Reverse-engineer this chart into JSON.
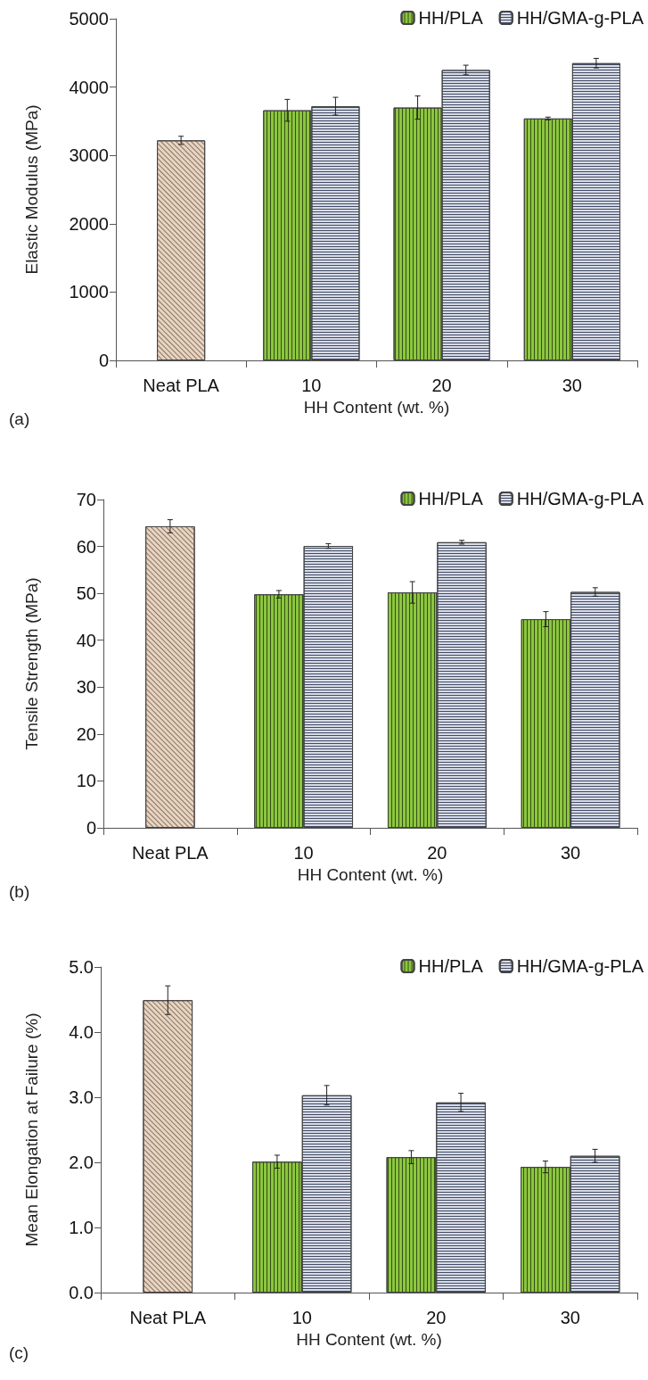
{
  "chart_data": [
    {
      "type": "bar",
      "xlabel": "HH Content (wt. %)",
      "ylabel": "Elastic Modulus (MPa)",
      "annotations": [
        "(a)"
      ],
      "categories": [
        "Neat PLA",
        "10",
        "20",
        "30"
      ],
      "ylim": [
        0,
        5000
      ],
      "yticks": [
        0,
        1000,
        2000,
        3000,
        4000,
        5000
      ],
      "grid": false,
      "legend": "top right",
      "series": [
        {
          "color": "#e6d5c3",
          "values": [
            3220,
            null,
            null,
            null
          ],
          "errors": [
            60,
            null,
            null,
            null
          ]
        },
        {
          "name": "HH/PLA",
          "color": "#8cc63f",
          "values": [
            null,
            3660,
            3700,
            3540
          ],
          "errors": [
            null,
            160,
            170,
            20
          ]
        },
        {
          "name": "HH/GMA-g-PLA",
          "color": "#d8dce6",
          "values": [
            null,
            3720,
            4250,
            4350
          ],
          "errors": [
            null,
            130,
            70,
            70
          ]
        }
      ]
    },
    {
      "type": "bar",
      "xlabel": "HH Content (wt. %)",
      "ylabel": "Tensile Strength (MPa)",
      "annotations": [
        "(b)"
      ],
      "categories": [
        "Neat PLA",
        "10",
        "20",
        "30"
      ],
      "ylim": [
        0,
        70
      ],
      "yticks": [
        0,
        10,
        20,
        30,
        40,
        50,
        60,
        70
      ],
      "grid": false,
      "legend": "top right",
      "series": [
        {
          "color": "#e6d5c3",
          "values": [
            64.3,
            null,
            null,
            null
          ],
          "errors": [
            1.4,
            null,
            null,
            null
          ]
        },
        {
          "name": "HH/PLA",
          "color": "#8cc63f",
          "values": [
            null,
            49.8,
            50.2,
            44.5
          ],
          "errors": [
            null,
            0.8,
            2.3,
            1.6
          ]
        },
        {
          "name": "HH/GMA-g-PLA",
          "color": "#d8dce6",
          "values": [
            null,
            60.1,
            60.9,
            50.3
          ],
          "errors": [
            null,
            0.5,
            0.4,
            0.9
          ]
        }
      ]
    },
    {
      "type": "bar",
      "xlabel": "HH Content (wt. %)",
      "ylabel": "Mean Elongation at Failure (%)",
      "annotations": [
        "(c)"
      ],
      "categories": [
        "Neat PLA",
        "10",
        "20",
        "30"
      ],
      "ylim": [
        0,
        5
      ],
      "yticks": [
        {
          "value": 0,
          "label": "0.0"
        },
        {
          "value": 1,
          "label": "1.0"
        },
        {
          "value": 2,
          "label": "2.0"
        },
        {
          "value": 3,
          "label": "3.0"
        },
        {
          "value": 4,
          "label": "4.0"
        },
        {
          "value": 5,
          "label": "5.0"
        }
      ],
      "grid": false,
      "legend": "top right",
      "series": [
        {
          "color": "#e6d5c3",
          "values": [
            4.49,
            null,
            null,
            null
          ],
          "errors": [
            0.22,
            null,
            null,
            null
          ]
        },
        {
          "name": "HH/PLA",
          "color": "#8cc63f",
          "values": [
            null,
            2.01,
            2.08,
            1.93
          ],
          "errors": [
            null,
            0.1,
            0.1,
            0.09
          ]
        },
        {
          "name": "HH/GMA-g-PLA",
          "color": "#d8dce6",
          "values": [
            null,
            3.03,
            2.92,
            2.1
          ],
          "errors": [
            null,
            0.15,
            0.14,
            0.1
          ]
        }
      ]
    }
  ]
}
